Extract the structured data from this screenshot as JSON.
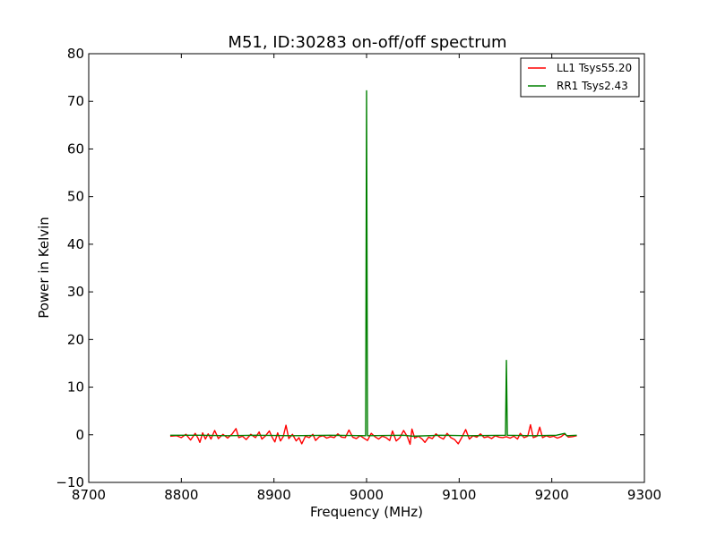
{
  "chart_data": {
    "type": "line",
    "title": "M51, ID:30283 on-off/off spectrum",
    "xlabel": "Frequency (MHz)",
    "ylabel": "Power in Kelvin",
    "xlim": [
      8700,
      9300
    ],
    "ylim": [
      -10,
      80
    ],
    "xticks": [
      8700,
      8800,
      8900,
      9000,
      9100,
      9200,
      9300
    ],
    "yticks": [
      -10,
      0,
      10,
      20,
      30,
      40,
      50,
      60,
      70,
      80
    ],
    "grid": false,
    "legend_position": "top-right",
    "series": [
      {
        "name": "LL1 Tsys55.20",
        "color": "#ff0000",
        "points": [
          [
            8788,
            -0.3
          ],
          [
            8795,
            -0.2
          ],
          [
            8800,
            -0.6
          ],
          [
            8805,
            0.1
          ],
          [
            8810,
            -1.1
          ],
          [
            8815,
            0.3
          ],
          [
            8818,
            -0.7
          ],
          [
            8820,
            -1.6
          ],
          [
            8823,
            0.4
          ],
          [
            8826,
            -0.9
          ],
          [
            8829,
            0.2
          ],
          [
            8832,
            -0.9
          ],
          [
            8836,
            0.9
          ],
          [
            8840,
            -0.8
          ],
          [
            8845,
            0.1
          ],
          [
            8850,
            -0.7
          ],
          [
            8855,
            0.2
          ],
          [
            8859,
            1.3
          ],
          [
            8862,
            -0.6
          ],
          [
            8866,
            -0.3
          ],
          [
            8870,
            -1.0
          ],
          [
            8875,
            0.1
          ],
          [
            8880,
            -0.6
          ],
          [
            8884,
            0.6
          ],
          [
            8887,
            -0.9
          ],
          [
            8891,
            -0.2
          ],
          [
            8895,
            0.8
          ],
          [
            8898,
            -0.5
          ],
          [
            8901,
            -1.5
          ],
          [
            8904,
            0.4
          ],
          [
            8907,
            -1.3
          ],
          [
            8910,
            -0.4
          ],
          [
            8913,
            2.0
          ],
          [
            8916,
            -0.8
          ],
          [
            8920,
            0.1
          ],
          [
            8924,
            -1.3
          ],
          [
            8927,
            -0.6
          ],
          [
            8930,
            -1.9
          ],
          [
            8934,
            -0.3
          ],
          [
            8938,
            -0.6
          ],
          [
            8942,
            0.1
          ],
          [
            8945,
            -1.2
          ],
          [
            8949,
            -0.4
          ],
          [
            8953,
            -0.2
          ],
          [
            8957,
            -0.7
          ],
          [
            8961,
            -0.4
          ],
          [
            8965,
            -0.6
          ],
          [
            8969,
            0.2
          ],
          [
            8973,
            -0.5
          ],
          [
            8977,
            -0.6
          ],
          [
            8981,
            1.0
          ],
          [
            8985,
            -0.5
          ],
          [
            8989,
            -0.8
          ],
          [
            8993,
            -0.2
          ],
          [
            8997,
            -0.7
          ],
          [
            9001,
            -1.2
          ],
          [
            9005,
            0.3
          ],
          [
            9009,
            -0.4
          ],
          [
            9013,
            -0.9
          ],
          [
            9017,
            -0.3
          ],
          [
            9021,
            -0.6
          ],
          [
            9025,
            -1.2
          ],
          [
            9028,
            0.8
          ],
          [
            9032,
            -1.3
          ],
          [
            9036,
            -0.6
          ],
          [
            9040,
            0.9
          ],
          [
            9044,
            -0.4
          ],
          [
            9047,
            -2.0
          ],
          [
            9049,
            1.2
          ],
          [
            9052,
            -0.7
          ],
          [
            9056,
            -0.3
          ],
          [
            9060,
            -0.9
          ],
          [
            9063,
            -1.6
          ],
          [
            9067,
            -0.5
          ],
          [
            9071,
            -0.8
          ],
          [
            9075,
            0.2
          ],
          [
            9079,
            -0.5
          ],
          [
            9083,
            -0.9
          ],
          [
            9087,
            0.3
          ],
          [
            9091,
            -0.6
          ],
          [
            9095,
            -1.0
          ],
          [
            9099,
            -1.9
          ],
          [
            9103,
            -0.5
          ],
          [
            9107,
            1.1
          ],
          [
            9111,
            -0.9
          ],
          [
            9115,
            -0.2
          ],
          [
            9119,
            -0.5
          ],
          [
            9123,
            0.2
          ],
          [
            9127,
            -0.6
          ],
          [
            9131,
            -0.4
          ],
          [
            9135,
            -0.8
          ],
          [
            9139,
            -0.2
          ],
          [
            9143,
            -0.5
          ],
          [
            9147,
            -0.6
          ],
          [
            9151,
            -0.4
          ],
          [
            9155,
            -0.7
          ],
          [
            9159,
            -0.3
          ],
          [
            9163,
            -0.9
          ],
          [
            9166,
            0.3
          ],
          [
            9170,
            -0.6
          ],
          [
            9174,
            -0.3
          ],
          [
            9177,
            2.1
          ],
          [
            9180,
            -0.6
          ],
          [
            9184,
            -0.3
          ],
          [
            9187,
            1.6
          ],
          [
            9190,
            -0.6
          ],
          [
            9194,
            -0.2
          ],
          [
            9198,
            -0.5
          ],
          [
            9202,
            -0.3
          ],
          [
            9206,
            -0.7
          ],
          [
            9210,
            -0.4
          ],
          [
            9214,
            0.2
          ],
          [
            9218,
            -0.5
          ],
          [
            9222,
            -0.4
          ],
          [
            9227,
            -0.2
          ]
        ]
      },
      {
        "name": "RR1 Tsys2.43",
        "color": "#008000",
        "points": [
          [
            8788,
            -0.1
          ],
          [
            8820,
            -0.1
          ],
          [
            8850,
            -0.2
          ],
          [
            8880,
            -0.1
          ],
          [
            8920,
            -0.2
          ],
          [
            8960,
            -0.1
          ],
          [
            8999,
            -0.2
          ],
          [
            9000,
            72.2
          ],
          [
            9001,
            -0.2
          ],
          [
            9040,
            -0.1
          ],
          [
            9050,
            -0.3
          ],
          [
            9080,
            -0.1
          ],
          [
            9110,
            -0.2
          ],
          [
            9150,
            -0.1
          ],
          [
            9151,
            15.6
          ],
          [
            9152,
            -0.1
          ],
          [
            9180,
            -0.2
          ],
          [
            9205,
            -0.1
          ],
          [
            9214,
            0.3
          ],
          [
            9216,
            -0.2
          ],
          [
            9227,
            -0.1
          ]
        ]
      }
    ]
  }
}
